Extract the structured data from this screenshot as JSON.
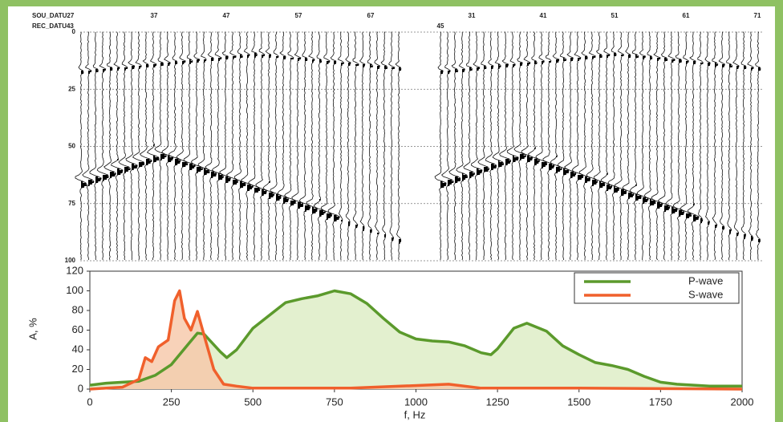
{
  "chart_data": [
    {
      "type": "seismic",
      "source_label": "SOU_DATU27",
      "receiver_label": "REC_DATU43",
      "gathers": [
        {
          "trace_labels": [
            37,
            47,
            57,
            67
          ]
        },
        {
          "trace_labels": [
            31,
            41,
            51,
            61,
            71
          ]
        }
      ],
      "receiver_value": 45,
      "ylim": [
        0,
        100
      ],
      "yticks": [
        0,
        25,
        50,
        75,
        100
      ],
      "grid": true
    },
    {
      "type": "area",
      "xlabel": "f, Hz",
      "ylabel": "A, %",
      "xlim": [
        0,
        2000
      ],
      "xticks": [
        0,
        250,
        500,
        750,
        1000,
        1250,
        1500,
        1750,
        2000
      ],
      "ylim": [
        0,
        120
      ],
      "yticks": [
        0,
        20,
        40,
        60,
        80,
        100,
        120
      ],
      "legend": "upper right",
      "series": [
        {
          "name": "P-wave",
          "color": "#5b9a2c",
          "fill": "#e3f0cf",
          "x": [
            0,
            50,
            100,
            150,
            200,
            250,
            300,
            330,
            350,
            400,
            420,
            450,
            500,
            550,
            600,
            650,
            700,
            750,
            800,
            850,
            900,
            950,
            1000,
            1050,
            1100,
            1150,
            1200,
            1230,
            1250,
            1300,
            1340,
            1400,
            1450,
            1500,
            1550,
            1600,
            1650,
            1700,
            1750,
            1800,
            1900,
            2000
          ],
          "values": [
            4,
            6,
            7,
            8,
            14,
            25,
            45,
            57,
            56,
            38,
            32,
            40,
            62,
            75,
            88,
            92,
            95,
            100,
            97,
            87,
            72,
            58,
            51,
            49,
            48,
            44,
            37,
            35,
            41,
            62,
            67,
            59,
            44,
            35,
            27,
            24,
            20,
            13,
            7,
            5,
            3,
            3
          ]
        },
        {
          "name": "S-wave",
          "color": "#f0602c",
          "fill": "#f6c7a8",
          "x": [
            0,
            50,
            100,
            150,
            170,
            190,
            210,
            240,
            260,
            275,
            290,
            310,
            330,
            350,
            380,
            410,
            450,
            500,
            600,
            800,
            1100,
            1200,
            1500,
            2000
          ],
          "values": [
            0,
            1,
            2,
            10,
            32,
            28,
            43,
            50,
            90,
            100,
            72,
            60,
            79,
            55,
            20,
            5,
            3,
            1,
            1,
            1,
            5,
            1,
            1,
            0
          ]
        }
      ]
    }
  ]
}
